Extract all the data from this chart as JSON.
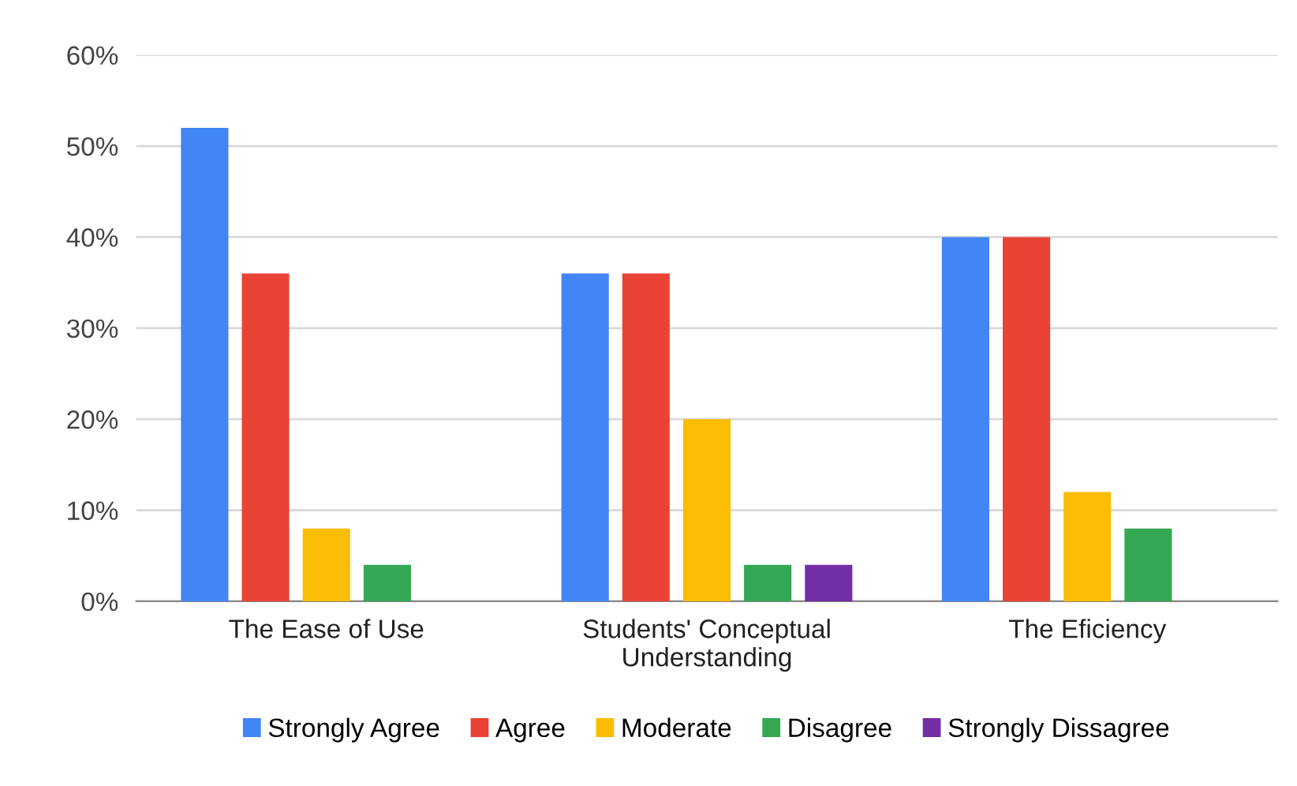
{
  "chart_data": {
    "type": "bar",
    "categories": [
      "The Ease of Use",
      "Students' Conceptual\nUnderstanding",
      "The Eficiency"
    ],
    "series": [
      {
        "name": "Strongly Agree",
        "color": "#4285f4",
        "values": [
          52,
          36,
          40
        ]
      },
      {
        "name": "Agree",
        "color": "#ea4335",
        "values": [
          36,
          36,
          40
        ]
      },
      {
        "name": "Moderate",
        "color": "#fbbc04",
        "values": [
          8,
          20,
          12
        ]
      },
      {
        "name": "Disagree",
        "color": "#34a853",
        "values": [
          4,
          4,
          8
        ]
      },
      {
        "name": "Strongly Dissagree",
        "color": "#7330a6",
        "values": [
          null,
          4,
          null
        ]
      }
    ],
    "ylim": [
      0,
      60
    ],
    "yticks": [
      {
        "value": 0,
        "label": "0%"
      },
      {
        "value": 10,
        "label": "10%"
      },
      {
        "value": 20,
        "label": "20%"
      },
      {
        "value": 30,
        "label": "30%"
      },
      {
        "value": 40,
        "label": "40%"
      },
      {
        "value": 50,
        "label": "50%"
      },
      {
        "value": 60,
        "label": "60%"
      }
    ],
    "grid": "y",
    "legend": "bottom"
  }
}
